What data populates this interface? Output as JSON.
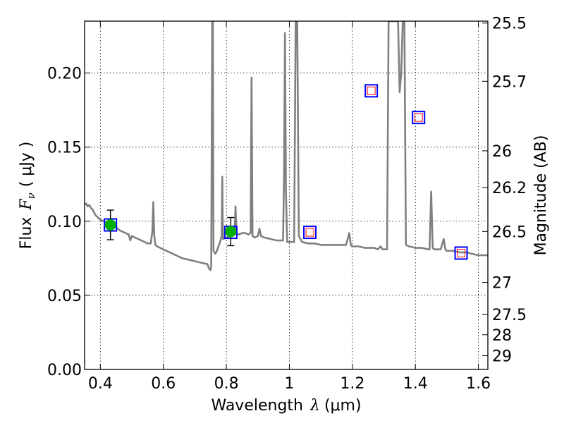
{
  "chart_data": {
    "type": "line",
    "xlabel": "Wavelength",
    "xlabel_symbol": "λ",
    "xlabel_unit": "(μm)",
    "ylabel": "Flux",
    "ylabel_symbol": "F",
    "ylabel_symbol_sub": "ν",
    "ylabel_unit": "( μJy )",
    "y2label": "Magnitude (AB)",
    "xlim": [
      0.35,
      1.63
    ],
    "ylim": [
      0.0,
      0.235
    ],
    "grid": true,
    "x_ticks": [
      0.4,
      0.6,
      0.8,
      1.0,
      1.2,
      1.4,
      1.6
    ],
    "x_tick_labels": [
      "0.4",
      "0.6",
      "0.8",
      "1",
      "1.2",
      "1.4",
      "1.6"
    ],
    "y_ticks": [
      0.0,
      0.05,
      0.1,
      0.15,
      0.2
    ],
    "y_tick_labels": [
      "0.00",
      "0.05",
      "0.10",
      "0.15",
      "0.20"
    ],
    "y2_ticks": [
      {
        "label": "25.5",
        "flux": 0.2337
      },
      {
        "label": "25.7",
        "flux": 0.1944
      },
      {
        "label": "26",
        "flux": 0.1475
      },
      {
        "label": "26.2",
        "flux": 0.1227
      },
      {
        "label": "26.5",
        "flux": 0.0931
      },
      {
        "label": "27",
        "flux": 0.0587
      },
      {
        "label": "27.5",
        "flux": 0.037
      },
      {
        "label": "28",
        "flux": 0.0234
      },
      {
        "label": "29",
        "flux": 0.0093
      }
    ],
    "series": [
      {
        "kind": "model_spectrum",
        "color": "#808080",
        "points": [
          [
            0.35,
            0.111
          ],
          [
            0.355,
            0.112
          ],
          [
            0.36,
            0.11
          ],
          [
            0.365,
            0.111
          ],
          [
            0.37,
            0.109
          ],
          [
            0.375,
            0.108
          ],
          [
            0.38,
            0.106
          ],
          [
            0.385,
            0.104
          ],
          [
            0.39,
            0.103
          ],
          [
            0.4,
            0.101
          ],
          [
            0.41,
            0.1
          ],
          [
            0.42,
            0.099
          ],
          [
            0.43,
            0.098
          ],
          [
            0.44,
            0.097
          ],
          [
            0.45,
            0.096
          ],
          [
            0.46,
            0.094
          ],
          [
            0.47,
            0.093
          ],
          [
            0.48,
            0.092
          ],
          [
            0.49,
            0.091
          ],
          [
            0.495,
            0.087
          ],
          [
            0.5,
            0.09
          ],
          [
            0.51,
            0.089
          ],
          [
            0.52,
            0.088
          ],
          [
            0.53,
            0.087
          ],
          [
            0.54,
            0.086
          ],
          [
            0.55,
            0.085
          ],
          [
            0.56,
            0.085
          ],
          [
            0.565,
            0.093
          ],
          [
            0.568,
            0.113
          ],
          [
            0.571,
            0.09
          ],
          [
            0.575,
            0.084
          ],
          [
            0.58,
            0.083
          ],
          [
            0.6,
            0.081
          ],
          [
            0.62,
            0.079
          ],
          [
            0.64,
            0.077
          ],
          [
            0.66,
            0.075
          ],
          [
            0.68,
            0.074
          ],
          [
            0.7,
            0.073
          ],
          [
            0.72,
            0.072
          ],
          [
            0.74,
            0.071
          ],
          [
            0.745,
            0.068
          ],
          [
            0.75,
            0.067
          ],
          [
            0.752,
            0.07
          ],
          [
            0.755,
            0.235
          ],
          [
            0.757,
            0.235
          ],
          [
            0.759,
            0.08
          ],
          [
            0.765,
            0.078
          ],
          [
            0.77,
            0.08
          ],
          [
            0.775,
            0.083
          ],
          [
            0.78,
            0.086
          ],
          [
            0.785,
            0.09
          ],
          [
            0.787,
            0.13
          ],
          [
            0.789,
            0.088
          ],
          [
            0.8,
            0.089
          ],
          [
            0.81,
            0.09
          ],
          [
            0.82,
            0.091
          ],
          [
            0.826,
            0.093
          ],
          [
            0.829,
            0.11
          ],
          [
            0.832,
            0.092
          ],
          [
            0.84,
            0.091
          ],
          [
            0.85,
            0.092
          ],
          [
            0.86,
            0.092
          ],
          [
            0.87,
            0.091
          ],
          [
            0.877,
            0.092
          ],
          [
            0.88,
            0.197
          ],
          [
            0.883,
            0.09
          ],
          [
            0.89,
            0.089
          ],
          [
            0.9,
            0.09
          ],
          [
            0.905,
            0.095
          ],
          [
            0.91,
            0.09
          ],
          [
            0.92,
            0.089
          ],
          [
            0.94,
            0.088
          ],
          [
            0.96,
            0.087
          ],
          [
            0.98,
            0.087
          ],
          [
            0.983,
            0.13
          ],
          [
            0.986,
            0.227
          ],
          [
            0.989,
            0.12
          ],
          [
            0.993,
            0.086
          ],
          [
            1.0,
            0.086
          ],
          [
            1.015,
            0.086
          ],
          [
            1.02,
            0.235
          ],
          [
            1.025,
            0.235
          ],
          [
            1.03,
            0.09
          ],
          [
            1.04,
            0.086
          ],
          [
            1.06,
            0.085
          ],
          [
            1.08,
            0.085
          ],
          [
            1.1,
            0.084
          ],
          [
            1.12,
            0.084
          ],
          [
            1.14,
            0.084
          ],
          [
            1.16,
            0.084
          ],
          [
            1.18,
            0.084
          ],
          [
            1.19,
            0.092
          ],
          [
            1.195,
            0.084
          ],
          [
            1.2,
            0.083
          ],
          [
            1.22,
            0.083
          ],
          [
            1.24,
            0.082
          ],
          [
            1.26,
            0.082
          ],
          [
            1.27,
            0.082
          ],
          [
            1.28,
            0.081
          ],
          [
            1.29,
            0.083
          ],
          [
            1.295,
            0.081
          ],
          [
            1.31,
            0.081
          ],
          [
            1.315,
            0.235
          ],
          [
            1.345,
            0.235
          ],
          [
            1.35,
            0.187
          ],
          [
            1.355,
            0.2
          ],
          [
            1.36,
            0.235
          ],
          [
            1.365,
            0.235
          ],
          [
            1.37,
            0.084
          ],
          [
            1.38,
            0.083
          ],
          [
            1.4,
            0.082
          ],
          [
            1.42,
            0.082
          ],
          [
            1.44,
            0.081
          ],
          [
            1.445,
            0.081
          ],
          [
            1.45,
            0.12
          ],
          [
            1.455,
            0.082
          ],
          [
            1.46,
            0.081
          ],
          [
            1.48,
            0.081
          ],
          [
            1.49,
            0.088
          ],
          [
            1.495,
            0.081
          ],
          [
            1.5,
            0.08
          ],
          [
            1.52,
            0.08
          ],
          [
            1.54,
            0.079
          ],
          [
            1.56,
            0.079
          ],
          [
            1.58,
            0.078
          ],
          [
            1.6,
            0.077
          ],
          [
            1.63,
            0.077
          ]
        ]
      },
      {
        "kind": "model_photometry",
        "marker": "square",
        "edge_color": "#0000ff",
        "points": [
          {
            "x": 0.432,
            "y": 0.0975
          },
          {
            "x": 0.814,
            "y": 0.0925
          },
          {
            "x": 1.065,
            "y": 0.0925
          },
          {
            "x": 1.26,
            "y": 0.188
          },
          {
            "x": 1.41,
            "y": 0.17
          },
          {
            "x": 1.545,
            "y": 0.0785
          }
        ]
      },
      {
        "kind": "upper_limits",
        "marker": "small-square",
        "edge_color": "#ff0000",
        "points": [
          {
            "x": 1.065,
            "y": 0.0925
          },
          {
            "x": 1.26,
            "y": 0.188
          },
          {
            "x": 1.41,
            "y": 0.17
          },
          {
            "x": 1.545,
            "y": 0.0785
          }
        ]
      },
      {
        "kind": "observed",
        "marker": "circle",
        "color": "#00b000",
        "points": [
          {
            "x": 0.432,
            "y": 0.0975,
            "yerr": 0.01
          },
          {
            "x": 0.814,
            "y": 0.093,
            "yerr": 0.0095
          }
        ]
      }
    ]
  }
}
